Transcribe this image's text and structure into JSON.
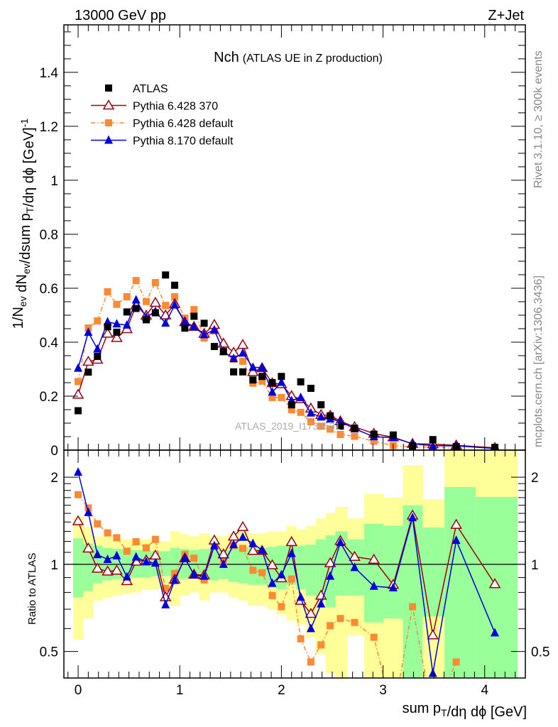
{
  "header": {
    "energy_label": "13000 GeV pp",
    "process_label": "Z+Jet",
    "title_main": "Nch",
    "title_sub": "(ATLAS UE in Z production)",
    "rivet_label": "Rivet 3.1.10, ≥ 300k events",
    "mcplots_label": "mcplots.cern.ch [arXiv:1306.3436]",
    "analysis_watermark": "ATLAS_2019_I1736531"
  },
  "chart_data": {
    "type": "line",
    "title": "Nch (ATLAS UE in Z production)",
    "ylabel_parts": [
      [
        "1/N",
        ""
      ],
      [
        "ev",
        "sub"
      ],
      [
        " dN",
        ""
      ],
      [
        "ev",
        "sub"
      ],
      [
        "/dsum p",
        ""
      ],
      [
        "T",
        "sub"
      ],
      [
        "/dη dϕ  [GeV]",
        ""
      ],
      [
        "-1",
        "sup"
      ]
    ],
    "xlabel_parts": [
      [
        "sum p",
        ""
      ],
      [
        "T",
        "sub"
      ],
      [
        "/dη dϕ [GeV]",
        ""
      ]
    ],
    "ratio_ylabel": "Ratio to ATLAS",
    "xlim": [
      -0.14,
      4.4
    ],
    "ylim": [
      0,
      1.576
    ],
    "ratio_ylim": [
      0.405,
      2.48
    ],
    "ratio_scale": "log",
    "xticks": [
      "0",
      "1",
      "2",
      "3",
      "4"
    ],
    "yticks": [
      "0",
      "0.2",
      "0.4",
      "0.6",
      "0.8",
      "1",
      "1.2",
      "1.4"
    ],
    "ratio_yticks": [
      "0.5",
      "1",
      "2"
    ],
    "legend_position": "top-left",
    "x": [
      0,
      0.1,
      0.19,
      0.29,
      0.38,
      0.48,
      0.57,
      0.67,
      0.76,
      0.86,
      0.95,
      1.05,
      1.14,
      1.24,
      1.34,
      1.43,
      1.53,
      1.62,
      1.72,
      1.81,
      1.91,
      2.0,
      2.1,
      2.19,
      2.29,
      2.39,
      2.48,
      2.58,
      2.72,
      2.91,
      3.1,
      3.29,
      3.49,
      3.72,
      4.1
    ],
    "data": {
      "name": "ATLAS",
      "color": "#000000",
      "values": [
        0.146,
        0.289,
        0.347,
        0.457,
        0.437,
        0.512,
        0.525,
        0.483,
        0.509,
        0.649,
        0.611,
        0.452,
        0.496,
        0.47,
        0.384,
        0.365,
        0.29,
        0.29,
        0.26,
        0.273,
        0.25,
        0.273,
        0.168,
        0.253,
        0.229,
        0.168,
        0.127,
        0.089,
        0.081,
        0.059,
        0.056,
        0.016,
        0.039,
        0.013,
        0.01
      ]
    },
    "series": [
      {
        "name": "Pythia 6.428 370",
        "color": "#990011",
        "marker": "open-triangle",
        "style": "solid",
        "ratio": [
          1.41,
          1.135,
          0.967,
          0.945,
          0.952,
          0.876,
          1.023,
          1.033,
          1.073,
          0.77,
          0.887,
          1.05,
          0.922,
          0.918,
          1.21,
          1.083,
          1.248,
          1.346,
          1.114,
          1.114,
          0.994,
          0.896,
          1.195,
          0.749,
          0.675,
          0.78,
          1.01,
          1.206,
          1.062,
          1.038,
          0.85,
          1.475,
          0.569,
          1.37,
          0.855
        ]
      },
      {
        "name": "Pythia 6.428 default",
        "color": "#ff8833",
        "marker": "square",
        "style": "dashdot",
        "ratio": [
          1.74,
          1.566,
          1.38,
          1.284,
          1.236,
          1.11,
          1.197,
          1.14,
          1.22,
          0.826,
          0.93,
          1.083,
          1.05,
          0.884,
          1.15,
          1.02,
          1.16,
          1.135,
          0.954,
          0.936,
          0.78,
          0.714,
          0.89,
          0.553,
          0.46,
          0.527,
          0.614,
          0.65,
          0.63,
          0.56,
          0.3,
          0.714,
          0.3,
          0.46,
          null
        ]
      },
      {
        "name": "Pythia 8.170 default",
        "color": "#0000dd",
        "marker": "filled-triangle",
        "style": "solid",
        "ratio": [
          2.08,
          1.51,
          1.08,
          1.04,
          1.07,
          0.905,
          1.06,
          1.02,
          1.01,
          0.725,
          0.88,
          1.05,
          0.92,
          0.91,
          1.16,
          1.0,
          1.17,
          1.24,
          1.18,
          1.12,
          0.86,
          0.92,
          1.09,
          0.77,
          0.6,
          0.73,
          0.91,
          1.19,
          0.975,
          0.84,
          0.83,
          1.45,
          0.42,
          1.21,
          0.58
        ]
      }
    ],
    "uncertainty_bands": {
      "inner_color": "#99ff99",
      "outer_color": "#ffff99",
      "inner_hi": [
        1.23,
        1.18,
        1.16,
        1.14,
        1.13,
        1.13,
        1.12,
        1.12,
        1.11,
        1.11,
        1.14,
        1.13,
        1.12,
        1.13,
        1.13,
        1.12,
        1.14,
        1.15,
        1.14,
        1.14,
        1.15,
        1.16,
        1.16,
        1.16,
        1.17,
        1.22,
        1.26,
        1.3,
        1.22,
        1.38,
        1.36,
        1.6,
        1.34,
        1.85,
        1.71
      ],
      "inner_lo": [
        0.77,
        0.81,
        0.86,
        0.88,
        0.89,
        0.89,
        0.9,
        0.9,
        0.91,
        0.91,
        0.87,
        0.89,
        0.9,
        0.88,
        0.88,
        0.89,
        0.87,
        0.86,
        0.85,
        0.85,
        0.83,
        0.82,
        0.85,
        0.82,
        0.78,
        0.75,
        0.71,
        0.78,
        0.78,
        0.63,
        0.65,
        0.3,
        0.66,
        0.3,
        0.3
      ],
      "outer_hi": [
        1.46,
        1.35,
        1.25,
        1.25,
        1.22,
        1.22,
        1.22,
        1.22,
        1.2,
        1.2,
        1.3,
        1.27,
        1.25,
        1.28,
        1.25,
        1.25,
        1.28,
        1.3,
        1.28,
        1.28,
        1.3,
        1.3,
        1.36,
        1.32,
        1.36,
        1.44,
        1.5,
        1.58,
        1.44,
        1.75,
        1.7,
        2.2,
        1.68,
        3,
        3
      ],
      "outer_lo": [
        0.55,
        0.65,
        0.75,
        0.77,
        0.78,
        0.79,
        0.8,
        0.82,
        0.82,
        0.82,
        0.72,
        0.78,
        0.8,
        0.75,
        0.8,
        0.8,
        0.77,
        0.75,
        0.72,
        0.72,
        0.7,
        0.67,
        0.64,
        0.62,
        0.56,
        0.49,
        0.42,
        0.3,
        0.57,
        0.3,
        0.3,
        0.3,
        0.3,
        0.3,
        0.3
      ]
    }
  }
}
